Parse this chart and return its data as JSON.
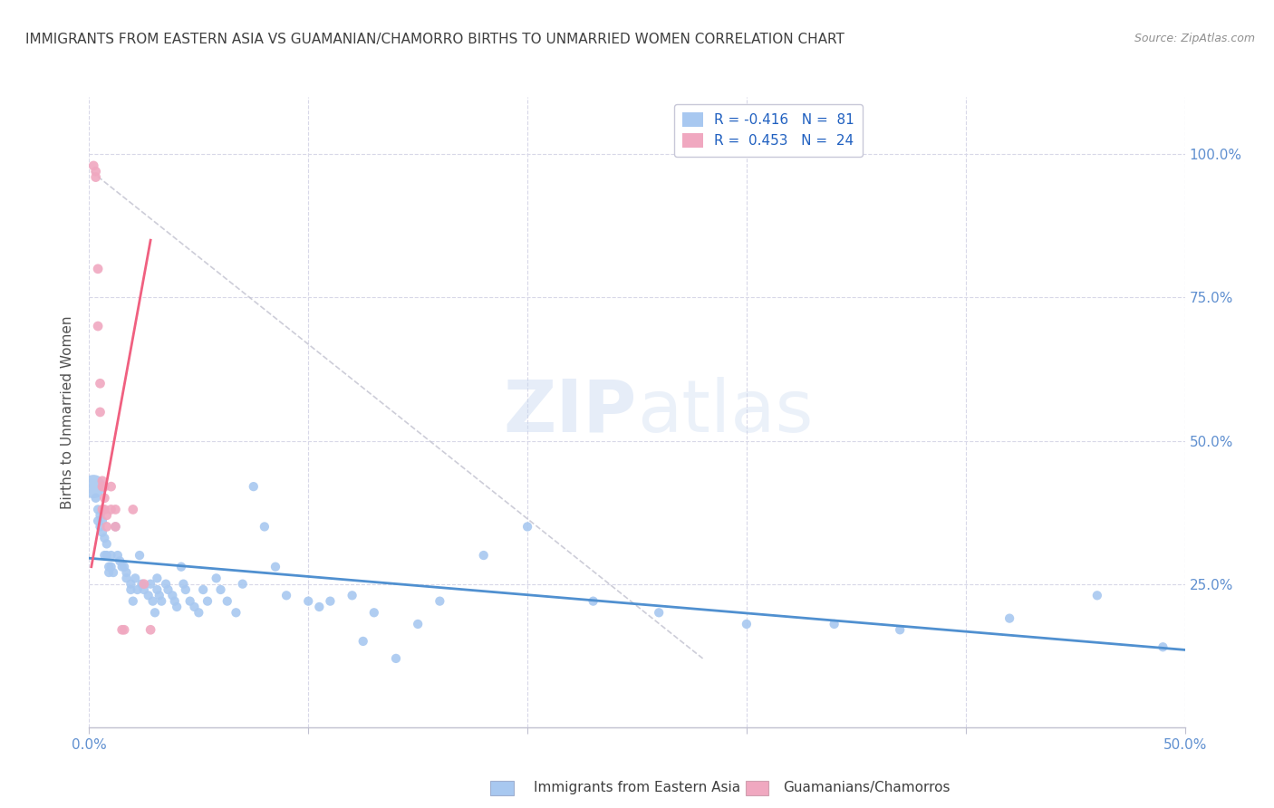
{
  "title": "IMMIGRANTS FROM EASTERN ASIA VS GUAMANIAN/CHAMORRO BIRTHS TO UNMARRIED WOMEN CORRELATION CHART",
  "source": "Source: ZipAtlas.com",
  "ylabel": "Births to Unmarried Women",
  "legend_label1": "Immigrants from Eastern Asia",
  "legend_label2": "Guamanians/Chamorros",
  "watermark": "ZIPatlas",
  "background_color": "#ffffff",
  "blue_color": "#a8c8f0",
  "pink_color": "#f0a8c0",
  "blue_line_color": "#5090d0",
  "pink_line_color": "#f06080",
  "grid_color": "#d8d8e8",
  "ytick_color": "#6090d0",
  "xtick_color": "#6090d0",
  "title_color": "#404040",
  "blue_scatter": [
    [
      0.002,
      0.42
    ],
    [
      0.003,
      0.4
    ],
    [
      0.004,
      0.38
    ],
    [
      0.004,
      0.36
    ],
    [
      0.005,
      0.37
    ],
    [
      0.005,
      0.35
    ],
    [
      0.006,
      0.36
    ],
    [
      0.006,
      0.34
    ],
    [
      0.007,
      0.33
    ],
    [
      0.007,
      0.3
    ],
    [
      0.008,
      0.32
    ],
    [
      0.008,
      0.3
    ],
    [
      0.009,
      0.28
    ],
    [
      0.009,
      0.27
    ],
    [
      0.01,
      0.3
    ],
    [
      0.01,
      0.28
    ],
    [
      0.011,
      0.27
    ],
    [
      0.012,
      0.35
    ],
    [
      0.013,
      0.3
    ],
    [
      0.014,
      0.29
    ],
    [
      0.015,
      0.28
    ],
    [
      0.016,
      0.28
    ],
    [
      0.017,
      0.27
    ],
    [
      0.017,
      0.26
    ],
    [
      0.019,
      0.25
    ],
    [
      0.019,
      0.24
    ],
    [
      0.02,
      0.22
    ],
    [
      0.021,
      0.26
    ],
    [
      0.022,
      0.24
    ],
    [
      0.023,
      0.3
    ],
    [
      0.024,
      0.25
    ],
    [
      0.025,
      0.24
    ],
    [
      0.027,
      0.23
    ],
    [
      0.028,
      0.25
    ],
    [
      0.029,
      0.22
    ],
    [
      0.03,
      0.2
    ],
    [
      0.031,
      0.26
    ],
    [
      0.031,
      0.24
    ],
    [
      0.032,
      0.23
    ],
    [
      0.033,
      0.22
    ],
    [
      0.035,
      0.25
    ],
    [
      0.036,
      0.24
    ],
    [
      0.038,
      0.23
    ],
    [
      0.039,
      0.22
    ],
    [
      0.04,
      0.21
    ],
    [
      0.042,
      0.28
    ],
    [
      0.043,
      0.25
    ],
    [
      0.044,
      0.24
    ],
    [
      0.046,
      0.22
    ],
    [
      0.048,
      0.21
    ],
    [
      0.05,
      0.2
    ],
    [
      0.052,
      0.24
    ],
    [
      0.054,
      0.22
    ],
    [
      0.058,
      0.26
    ],
    [
      0.06,
      0.24
    ],
    [
      0.063,
      0.22
    ],
    [
      0.067,
      0.2
    ],
    [
      0.07,
      0.25
    ],
    [
      0.075,
      0.42
    ],
    [
      0.08,
      0.35
    ],
    [
      0.085,
      0.28
    ],
    [
      0.09,
      0.23
    ],
    [
      0.1,
      0.22
    ],
    [
      0.105,
      0.21
    ],
    [
      0.11,
      0.22
    ],
    [
      0.12,
      0.23
    ],
    [
      0.125,
      0.15
    ],
    [
      0.13,
      0.2
    ],
    [
      0.14,
      0.12
    ],
    [
      0.15,
      0.18
    ],
    [
      0.16,
      0.22
    ],
    [
      0.18,
      0.3
    ],
    [
      0.2,
      0.35
    ],
    [
      0.23,
      0.22
    ],
    [
      0.26,
      0.2
    ],
    [
      0.3,
      0.18
    ],
    [
      0.34,
      0.18
    ],
    [
      0.37,
      0.17
    ],
    [
      0.42,
      0.19
    ],
    [
      0.46,
      0.23
    ],
    [
      0.49,
      0.14
    ]
  ],
  "pink_scatter": [
    [
      0.002,
      0.98
    ],
    [
      0.003,
      0.97
    ],
    [
      0.003,
      0.96
    ],
    [
      0.004,
      0.8
    ],
    [
      0.004,
      0.7
    ],
    [
      0.005,
      0.6
    ],
    [
      0.005,
      0.55
    ],
    [
      0.006,
      0.43
    ],
    [
      0.006,
      0.42
    ],
    [
      0.006,
      0.38
    ],
    [
      0.007,
      0.42
    ],
    [
      0.007,
      0.4
    ],
    [
      0.007,
      0.38
    ],
    [
      0.008,
      0.37
    ],
    [
      0.008,
      0.35
    ],
    [
      0.01,
      0.42
    ],
    [
      0.01,
      0.38
    ],
    [
      0.012,
      0.38
    ],
    [
      0.012,
      0.35
    ],
    [
      0.015,
      0.17
    ],
    [
      0.016,
      0.17
    ],
    [
      0.02,
      0.38
    ],
    [
      0.025,
      0.25
    ],
    [
      0.028,
      0.17
    ]
  ],
  "blue_line_x": [
    0.0,
    0.5
  ],
  "blue_line_y": [
    0.295,
    0.135
  ],
  "pink_line_x": [
    0.001,
    0.028
  ],
  "pink_line_y": [
    0.28,
    0.85
  ],
  "dashed_line_x": [
    0.001,
    0.28
  ],
  "dashed_line_y": [
    0.97,
    0.12
  ],
  "xlim": [
    0,
    0.5
  ],
  "ylim": [
    0,
    1.1
  ],
  "ytick_vals": [
    0.25,
    0.5,
    0.75,
    1.0
  ],
  "ytick_labels": [
    "25.0%",
    "50.0%",
    "75.0%",
    "100.0%"
  ],
  "xtick_vals": [
    0.0,
    0.1,
    0.2,
    0.3,
    0.4,
    0.5
  ],
  "xtick_labels": [
    "0.0%",
    "",
    "",
    "",
    "",
    "50.0%"
  ]
}
